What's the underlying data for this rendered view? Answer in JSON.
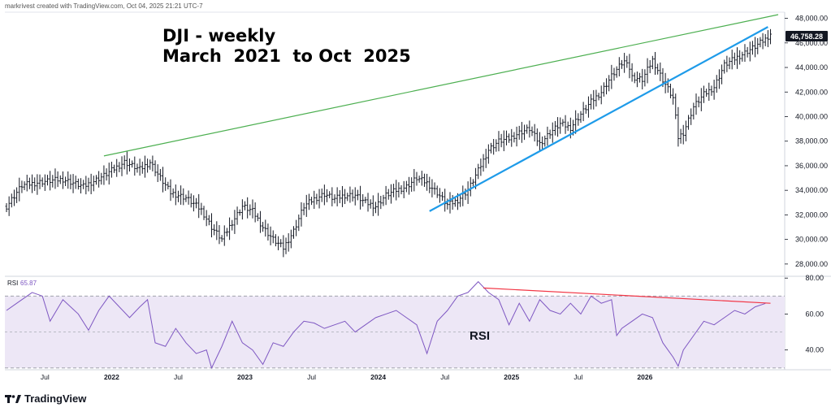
{
  "header": {
    "credit": "markrivest created with TradingView.com, Oct 04, 2025 21:21 UTC-7",
    "title_line1": "DJI - weekly",
    "title_line2": "March  2021  to Oct  2025"
  },
  "brand": {
    "name": "TradingView",
    "icon": "tradingview-logo-icon"
  },
  "colors": {
    "up_trendline": "#4caf50",
    "rising_wedge": "#1e9be9",
    "rsi_line": "#7e57c2",
    "rsi_band": "#ede7f6",
    "rsi_divergence": "#f23645",
    "price_bar": "#131722"
  },
  "chart_data": [
    {
      "type": "ohlc",
      "name": "price",
      "title": "DJI - weekly",
      "ylim": [
        27000,
        48500
      ],
      "y_ticks": [
        "48,000.00",
        "46,000.00",
        "44,000.00",
        "42,000.00",
        "40,000.00",
        "38,000.00",
        "36,000.00",
        "34,000.00",
        "32,000.00",
        "30,000.00",
        "28,000.00"
      ],
      "last_price_label": "46,758.28",
      "last_price": 46758.28,
      "x_labels": [
        "Jul",
        "2022",
        "Jul",
        "2023",
        "Jul",
        "2024",
        "Jul",
        "2025",
        "Jul",
        "2026"
      ],
      "close_path": [
        [
          0,
          32700
        ],
        [
          6,
          34400
        ],
        [
          14,
          34700
        ],
        [
          22,
          34900
        ],
        [
          30,
          34300
        ],
        [
          38,
          35200
        ],
        [
          46,
          36300
        ],
        [
          52,
          35700
        ],
        [
          56,
          36300
        ],
        [
          60,
          35000
        ],
        [
          64,
          33800
        ],
        [
          70,
          33400
        ],
        [
          76,
          32400
        ],
        [
          80,
          31000
        ],
        [
          84,
          30000
        ],
        [
          88,
          31400
        ],
        [
          92,
          32700
        ],
        [
          96,
          32300
        ],
        [
          100,
          31000
        ],
        [
          104,
          30000
        ],
        [
          108,
          29300
        ],
        [
          112,
          30700
        ],
        [
          116,
          32700
        ],
        [
          120,
          33300
        ],
        [
          124,
          33700
        ],
        [
          128,
          33300
        ],
        [
          132,
          33600
        ],
        [
          136,
          33600
        ],
        [
          140,
          33000
        ],
        [
          144,
          32700
        ],
        [
          148,
          33600
        ],
        [
          152,
          34000
        ],
        [
          156,
          34300
        ],
        [
          160,
          35000
        ],
        [
          164,
          34600
        ],
        [
          168,
          33800
        ],
        [
          172,
          32800
        ],
        [
          176,
          33200
        ],
        [
          180,
          34000
        ],
        [
          184,
          35600
        ],
        [
          188,
          37300
        ],
        [
          192,
          38000
        ],
        [
          196,
          38200
        ],
        [
          200,
          38700
        ],
        [
          204,
          39000
        ],
        [
          208,
          37800
        ],
        [
          212,
          38700
        ],
        [
          216,
          39400
        ],
        [
          220,
          39100
        ],
        [
          224,
          40200
        ],
        [
          228,
          41200
        ],
        [
          232,
          42000
        ],
        [
          236,
          43300
        ],
        [
          240,
          44300
        ],
        [
          242,
          44600
        ],
        [
          244,
          43200
        ],
        [
          248,
          43000
        ],
        [
          252,
          44600
        ],
        [
          256,
          43000
        ],
        [
          260,
          41500
        ],
        [
          262,
          38300
        ],
        [
          264,
          38700
        ],
        [
          268,
          40800
        ],
        [
          272,
          41800
        ],
        [
          276,
          42400
        ],
        [
          280,
          44200
        ],
        [
          284,
          44700
        ],
        [
          288,
          45200
        ],
        [
          292,
          45700
        ],
        [
          296,
          46300
        ],
        [
          298,
          46758
        ]
      ],
      "annotations": [
        {
          "label": "up trendline",
          "from": [
            38,
            36800
          ],
          "to": [
            301,
            48300
          ]
        },
        {
          "label": "rising wedge lower line",
          "from": [
            165,
            32300
          ],
          "to": [
            297,
            47300
          ]
        }
      ]
    },
    {
      "type": "line",
      "name": "RSI",
      "label": "RSI",
      "value_label": "65.87",
      "value": 65.87,
      "ylim": [
        29,
        81
      ],
      "y_ticks": [
        "80.00",
        "60.00",
        "40.00"
      ],
      "band": [
        30,
        70
      ],
      "midline": 50,
      "series": [
        [
          0,
          62
        ],
        [
          5,
          67
        ],
        [
          10,
          72
        ],
        [
          14,
          70
        ],
        [
          17,
          56
        ],
        [
          22,
          68
        ],
        [
          28,
          60
        ],
        [
          32,
          51
        ],
        [
          36,
          62
        ],
        [
          40,
          70
        ],
        [
          44,
          64
        ],
        [
          48,
          58
        ],
        [
          52,
          64
        ],
        [
          55,
          68
        ],
        [
          58,
          44
        ],
        [
          62,
          42
        ],
        [
          66,
          52
        ],
        [
          70,
          44
        ],
        [
          74,
          38
        ],
        [
          78,
          40
        ],
        [
          80,
          30
        ],
        [
          84,
          42
        ],
        [
          88,
          56
        ],
        [
          92,
          44
        ],
        [
          96,
          40
        ],
        [
          100,
          32
        ],
        [
          104,
          44
        ],
        [
          108,
          42
        ],
        [
          112,
          50
        ],
        [
          116,
          56
        ],
        [
          120,
          55
        ],
        [
          124,
          52
        ],
        [
          128,
          54
        ],
        [
          132,
          56
        ],
        [
          136,
          50
        ],
        [
          140,
          54
        ],
        [
          144,
          58
        ],
        [
          148,
          60
        ],
        [
          152,
          62
        ],
        [
          156,
          58
        ],
        [
          160,
          54
        ],
        [
          164,
          38
        ],
        [
          168,
          56
        ],
        [
          172,
          62
        ],
        [
          176,
          70
        ],
        [
          180,
          72
        ],
        [
          184,
          78
        ],
        [
          188,
          72
        ],
        [
          192,
          68
        ],
        [
          196,
          54
        ],
        [
          200,
          66
        ],
        [
          204,
          56
        ],
        [
          208,
          68
        ],
        [
          212,
          62
        ],
        [
          216,
          60
        ],
        [
          220,
          66
        ],
        [
          224,
          60
        ],
        [
          228,
          70
        ],
        [
          232,
          66
        ],
        [
          236,
          68
        ],
        [
          238,
          48
        ],
        [
          240,
          52
        ],
        [
          244,
          56
        ],
        [
          248,
          60
        ],
        [
          252,
          58
        ],
        [
          256,
          44
        ],
        [
          260,
          36
        ],
        [
          262,
          31
        ],
        [
          264,
          40
        ],
        [
          268,
          48
        ],
        [
          272,
          56
        ],
        [
          276,
          54
        ],
        [
          280,
          58
        ],
        [
          284,
          62
        ],
        [
          288,
          60
        ],
        [
          292,
          64
        ],
        [
          296,
          65.87
        ]
      ],
      "annotations": [
        {
          "label": "bearish divergence line",
          "from": [
            186,
            74.5
          ],
          "to": [
            298,
            66
          ]
        }
      ],
      "text_label": "RSI"
    }
  ]
}
